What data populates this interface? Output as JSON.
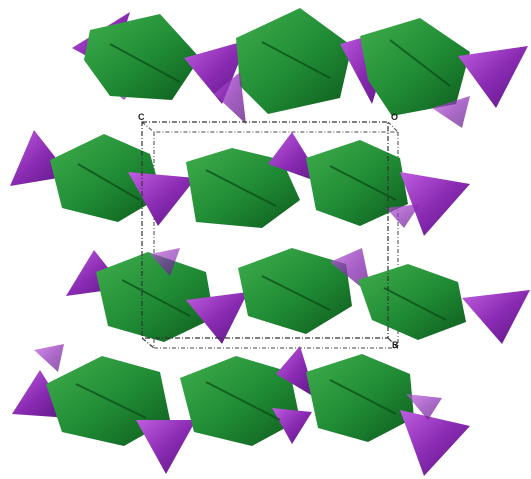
{
  "structure": {
    "colors": {
      "octahedra": "#1f8a34",
      "octahedra_light": "#3fae4c",
      "octahedra_dark": "#0e5a1d",
      "tetrahedra": "#8a2bb3",
      "tetrahedra_light": "#b04fd6",
      "tetrahedra_dark": "#5a1580",
      "cell_edge": "#333333"
    },
    "layer_count": 4
  },
  "unit_cell": {
    "labels": {
      "c": "C",
      "o": "O",
      "b": "B"
    }
  }
}
